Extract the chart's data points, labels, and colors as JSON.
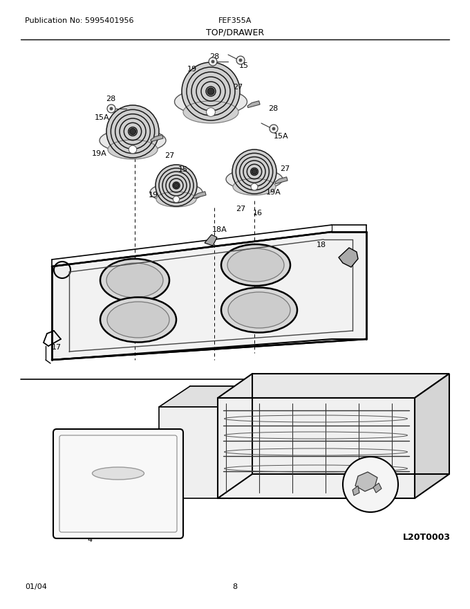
{
  "publication": "Publication No: 5995401956",
  "model": "FEF355A",
  "section": "TOP/DRAWER",
  "date": "01/04",
  "page": "8",
  "diagram_code": "L20T0003",
  "bg_color": "#ffffff",
  "line_color": "#000000",
  "text_color": "#000000",
  "label_fontsize": 8,
  "header_fontsize": 8,
  "section_fontsize": 9
}
